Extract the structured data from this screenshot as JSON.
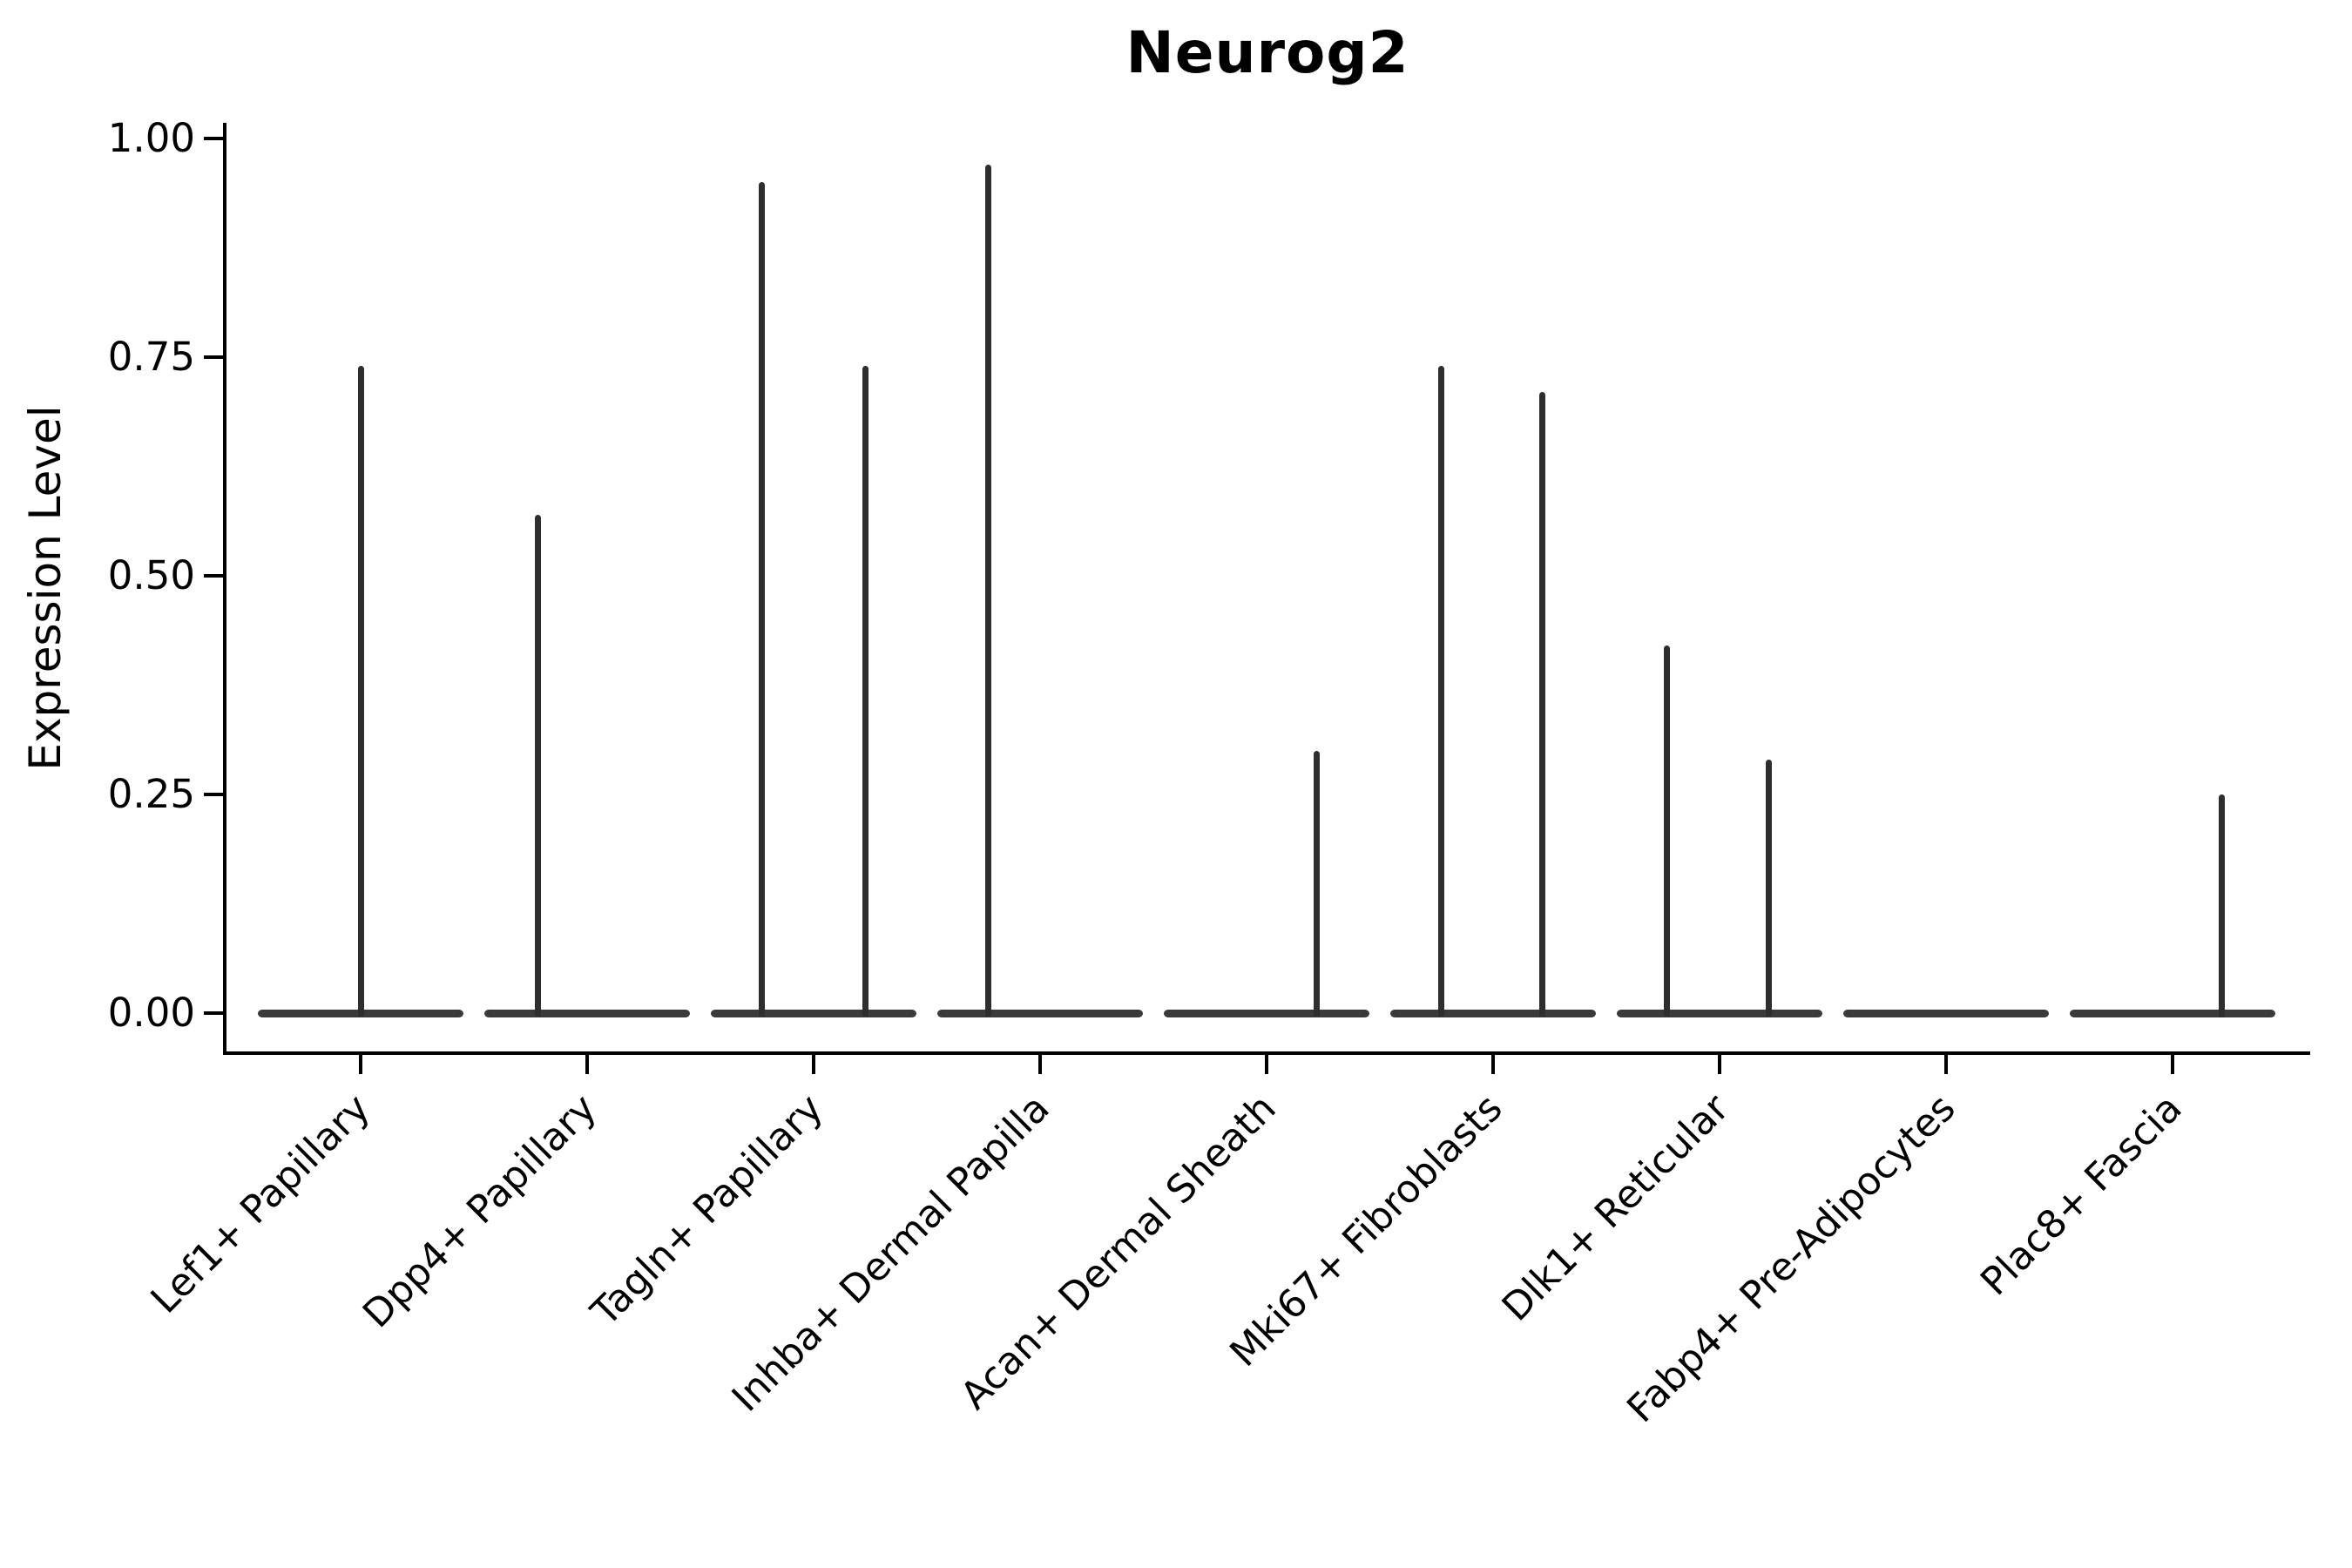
{
  "title": "Neurog2",
  "ylabel": "Expression Level",
  "chart_data": {
    "type": "violin",
    "title": "Neurog2",
    "xlabel": "",
    "ylabel": "Expression Level",
    "ylim": [
      0,
      1
    ],
    "grid": false,
    "legend_position": "none",
    "ytick_labels": [
      "0.00",
      "0.25",
      "0.50",
      "0.75",
      "1.00"
    ],
    "ytick_values": [
      0,
      0.25,
      0.5,
      0.75,
      1.0
    ],
    "categories": [
      "Lef1+ Papillary",
      "Dpp4+ Papillary",
      "Tagln+ Papillary",
      "Inhba+ Dermal Papilla",
      "Acan+ Dermal Sheath",
      "Mki67+ Fibroblasts",
      "Dlk1+ Reticular",
      "Fabp4+ Pre-Adipocytes",
      "Plac8+ Fascia"
    ],
    "series": [
      {
        "category": "Lef1+ Papillary",
        "baseline_value": 0,
        "spikes": [
          {
            "value": 0.74,
            "offset_units": 0.0
          }
        ]
      },
      {
        "category": "Dpp4+ Papillary",
        "baseline_value": 0,
        "spikes": [
          {
            "value": 0.57,
            "offset_units": -0.22
          }
        ]
      },
      {
        "category": "Tagln+ Papillary",
        "baseline_value": 0,
        "spikes": [
          {
            "value": 0.95,
            "offset_units": -0.23
          },
          {
            "value": 0.74,
            "offset_units": 0.23
          }
        ]
      },
      {
        "category": "Inhba+ Dermal Papilla",
        "baseline_value": 0,
        "spikes": [
          {
            "value": 0.97,
            "offset_units": -0.23
          }
        ]
      },
      {
        "category": "Acan+ Dermal Sheath",
        "baseline_value": 0,
        "spikes": [
          {
            "value": 0.3,
            "offset_units": 0.22
          }
        ]
      },
      {
        "category": "Mki67+ Fibroblasts",
        "baseline_value": 0,
        "spikes": [
          {
            "value": 0.74,
            "offset_units": -0.23
          },
          {
            "value": 0.71,
            "offset_units": 0.22
          }
        ]
      },
      {
        "category": "Dlk1+ Reticular",
        "baseline_value": 0,
        "spikes": [
          {
            "value": 0.42,
            "offset_units": -0.23
          },
          {
            "value": 0.29,
            "offset_units": 0.22
          }
        ]
      },
      {
        "category": "Fabp4+ Pre-Adipocytes",
        "baseline_value": 0,
        "spikes": []
      },
      {
        "category": "Plac8+ Fascia",
        "baseline_value": 0,
        "spikes": [
          {
            "value": 0.25,
            "offset_units": 0.22
          }
        ]
      }
    ],
    "colors": {
      "violin": "#3a3a3a",
      "spike": "#2e2e2e",
      "axis": "#000000",
      "text": "#000000",
      "background": "#ffffff"
    }
  }
}
